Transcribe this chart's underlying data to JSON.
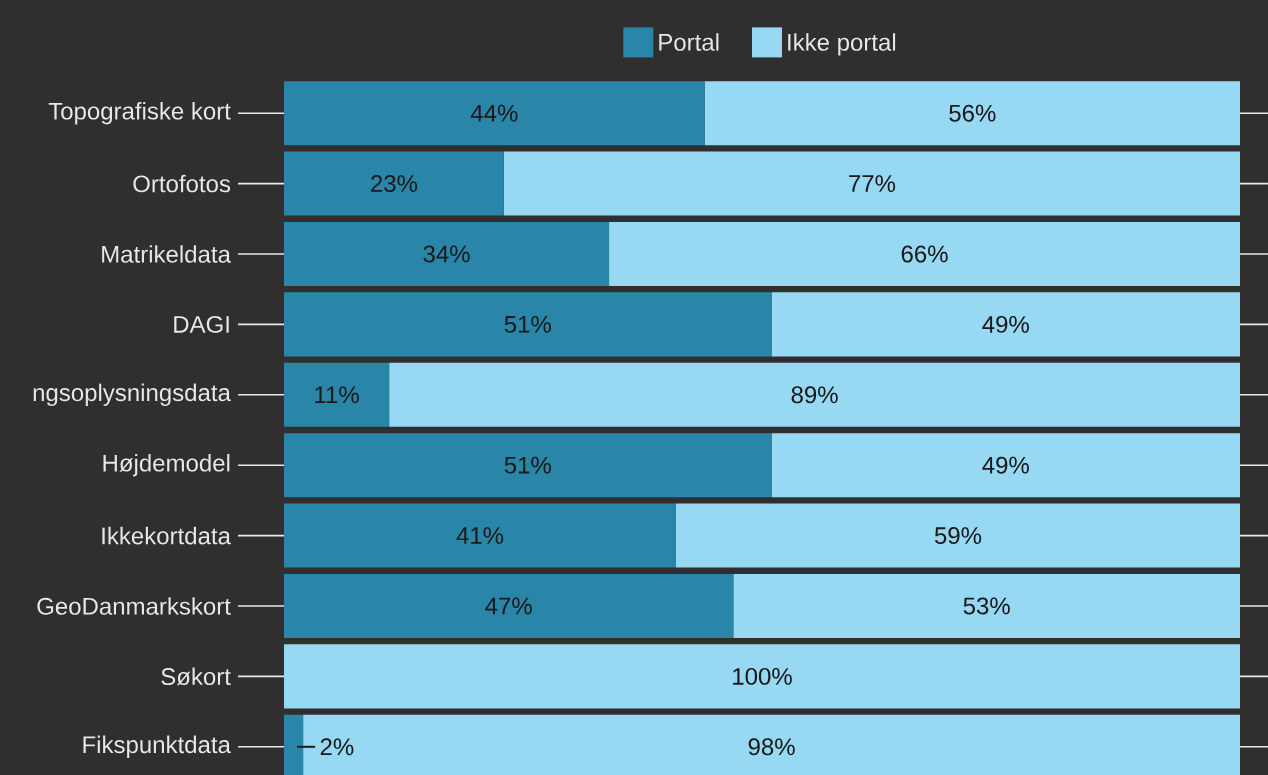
{
  "chart_data": {
    "type": "bar",
    "orientation": "horizontal",
    "stacked": true,
    "categories": [
      "Topografiske kort",
      "Ortofotos",
      "Matrikeldata",
      "DAGI",
      "ngsoplysningsdata",
      "Højdemodel",
      "Ikkekortdata",
      "GeoDanmarkskort",
      "Søkort",
      "Fikspunktdata"
    ],
    "series": [
      {
        "name": "Portal",
        "color": "#2a86a8",
        "values": [
          44,
          23,
          34,
          51,
          11,
          51,
          41,
          47,
          0,
          2
        ],
        "value_labels": [
          "44%",
          "23%",
          "34%",
          "51%",
          "11%",
          "51%",
          "41%",
          "47%",
          null,
          "2%"
        ]
      },
      {
        "name": "Ikke portal",
        "color": "#97d8f2",
        "values": [
          56,
          77,
          66,
          49,
          89,
          49,
          59,
          53,
          100,
          98
        ],
        "value_labels": [
          "56%",
          "77%",
          "66%",
          "49%",
          "89%",
          "49%",
          "59%",
          "53%",
          "100%",
          "98%"
        ]
      }
    ],
    "xlim": [
      0,
      100
    ],
    "tick_labels": "y",
    "legend": "top"
  }
}
